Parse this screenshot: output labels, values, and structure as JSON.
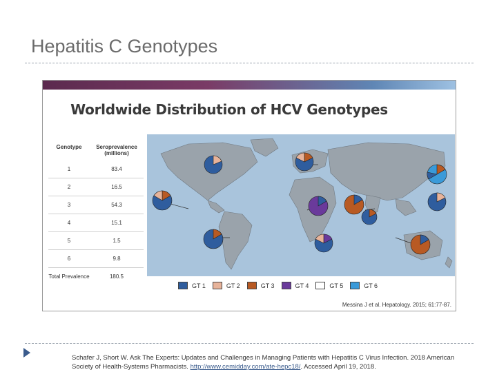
{
  "slide": {
    "title": "Hepatitis C Genotypes"
  },
  "figure": {
    "title": "Worldwide Distribution of HCV Genotypes",
    "table": {
      "header_genotype": "Genotype",
      "header_seroprevalence": "Seroprevalence (millions)",
      "rows": [
        {
          "genotype": "1",
          "value": "83.4"
        },
        {
          "genotype": "2",
          "value": "16.5"
        },
        {
          "genotype": "3",
          "value": "54.3"
        },
        {
          "genotype": "4",
          "value": "15.1"
        },
        {
          "genotype": "5",
          "value": "1.5"
        },
        {
          "genotype": "6",
          "value": "9.8"
        }
      ],
      "total_label": "Total Prevalence",
      "total_value": "180.5"
    },
    "legend": [
      {
        "label": "GT 1",
        "color": "#2f5d9e"
      },
      {
        "label": "GT 2",
        "color": "#e7b39a"
      },
      {
        "label": "GT 3",
        "color": "#b85a23"
      },
      {
        "label": "GT 4",
        "color": "#6a3a9b"
      },
      {
        "label": "GT 5",
        "color": "#ffffff"
      },
      {
        "label": "GT 6",
        "color": "#3a9ad9"
      }
    ],
    "citation": "Messina J et al. Hepatology. 2015; 61:77-87.",
    "colors": {
      "ocean": "#a9c4dc",
      "land": "#9aa3ab"
    }
  },
  "reference": {
    "text_before_link": "Schafer J, Short W. Ask The Experts: Updates and Challenges in Managing Patients with Hepatitis C Virus Infection. 2018 American Society of Health-Systems Pharmacists. ",
    "link": "http://www.cemidday.com/ate-hepc18/",
    "text_after_link": ". Accessed April 19, 2018."
  }
}
